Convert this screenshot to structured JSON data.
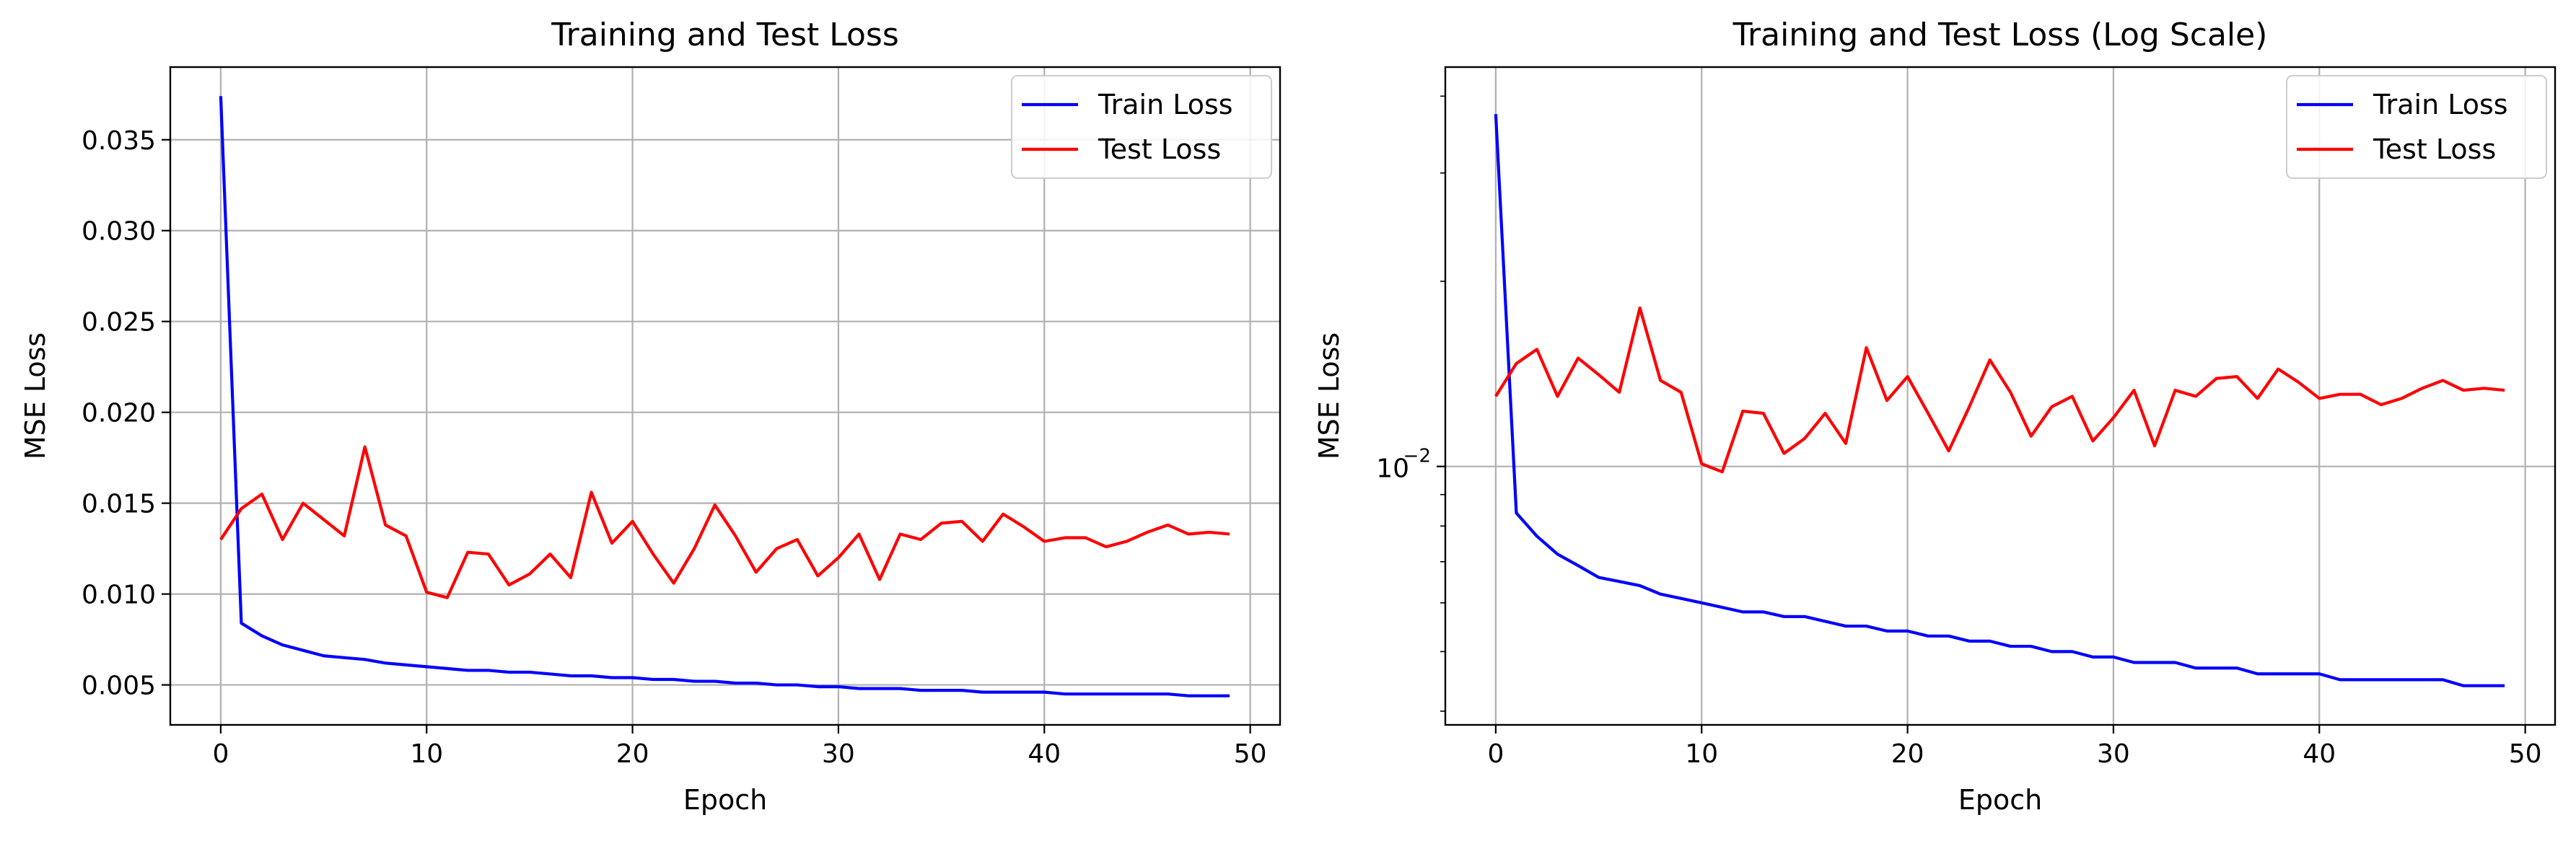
{
  "chart_data": [
    {
      "type": "line",
      "title": "Training and Test Loss",
      "xlabel": "Epoch",
      "ylabel": "MSE Loss",
      "yscale": "linear",
      "xlim": [
        -2.45,
        51.45
      ],
      "ylim": [
        0.0028,
        0.039
      ],
      "xticks": [
        0,
        10,
        20,
        30,
        40,
        50
      ],
      "xtick_labels": [
        "0",
        "10",
        "20",
        "30",
        "40",
        "50"
      ],
      "yticks": [
        0.005,
        0.01,
        0.015,
        0.02,
        0.025,
        0.03,
        0.035
      ],
      "ytick_labels": [
        "0.005",
        "0.010",
        "0.015",
        "0.020",
        "0.025",
        "0.030",
        "0.035"
      ],
      "grid": true,
      "legend": "upper right",
      "x": [
        0,
        1,
        2,
        3,
        4,
        5,
        6,
        7,
        8,
        9,
        10,
        11,
        12,
        13,
        14,
        15,
        16,
        17,
        18,
        19,
        20,
        21,
        22,
        23,
        24,
        25,
        26,
        27,
        28,
        29,
        30,
        31,
        32,
        33,
        34,
        35,
        36,
        37,
        38,
        39,
        40,
        41,
        42,
        43,
        44,
        45,
        46,
        47,
        48,
        49
      ],
      "series": [
        {
          "name": "Train Loss",
          "color": "#0000ff",
          "values": [
            0.0374,
            0.0084,
            0.0077,
            0.0072,
            0.0069,
            0.0066,
            0.0065,
            0.0064,
            0.0062,
            0.0061,
            0.006,
            0.0059,
            0.0058,
            0.0058,
            0.0057,
            0.0057,
            0.0056,
            0.0055,
            0.0055,
            0.0054,
            0.0054,
            0.0053,
            0.0053,
            0.0052,
            0.0052,
            0.0051,
            0.0051,
            0.005,
            0.005,
            0.0049,
            0.0049,
            0.0048,
            0.0048,
            0.0048,
            0.0047,
            0.0047,
            0.0047,
            0.0046,
            0.0046,
            0.0046,
            0.0046,
            0.0045,
            0.0045,
            0.0045,
            0.0045,
            0.0045,
            0.0045,
            0.0044,
            0.0044,
            0.0044
          ]
        },
        {
          "name": "Test Loss",
          "color": "#ff0000",
          "values": [
            0.013,
            0.0147,
            0.0155,
            0.013,
            0.015,
            0.0141,
            0.0132,
            0.0181,
            0.0138,
            0.0132,
            0.0101,
            0.0098,
            0.0123,
            0.0122,
            0.0105,
            0.0111,
            0.0122,
            0.0109,
            0.0156,
            0.0128,
            0.014,
            0.0122,
            0.0106,
            0.0125,
            0.0149,
            0.0132,
            0.0112,
            0.0125,
            0.013,
            0.011,
            0.012,
            0.0133,
            0.0108,
            0.0133,
            0.013,
            0.0139,
            0.014,
            0.0129,
            0.0144,
            0.0137,
            0.0129,
            0.0131,
            0.0131,
            0.0126,
            0.0129,
            0.0134,
            0.0138,
            0.0133,
            0.0134,
            0.0133
          ]
        }
      ]
    },
    {
      "type": "line",
      "title": "Training and Test Loss (Log Scale)",
      "xlabel": "Epoch",
      "ylabel": "MSE Loss",
      "yscale": "log",
      "xlim": [
        -2.45,
        51.45
      ],
      "ylim": [
        0.0038,
        0.0446
      ],
      "xticks": [
        0,
        10,
        20,
        30,
        40,
        50
      ],
      "xtick_labels": [
        "0",
        "10",
        "20",
        "30",
        "40",
        "50"
      ],
      "yticks": [
        0.01
      ],
      "ytick_base": "10",
      "ytick_exponent": "−2",
      "minor_yticks": [
        0.004,
        0.005,
        0.006,
        0.007,
        0.008,
        0.009,
        0.02,
        0.03,
        0.04
      ],
      "grid": true,
      "legend": "upper right",
      "x": [
        0,
        1,
        2,
        3,
        4,
        5,
        6,
        7,
        8,
        9,
        10,
        11,
        12,
        13,
        14,
        15,
        16,
        17,
        18,
        19,
        20,
        21,
        22,
        23,
        24,
        25,
        26,
        27,
        28,
        29,
        30,
        31,
        32,
        33,
        34,
        35,
        36,
        37,
        38,
        39,
        40,
        41,
        42,
        43,
        44,
        45,
        46,
        47,
        48,
        49
      ],
      "series": [
        {
          "name": "Train Loss",
          "color": "#0000ff",
          "values": [
            0.0374,
            0.0084,
            0.0077,
            0.0072,
            0.0069,
            0.0066,
            0.0065,
            0.0064,
            0.0062,
            0.0061,
            0.006,
            0.0059,
            0.0058,
            0.0058,
            0.0057,
            0.0057,
            0.0056,
            0.0055,
            0.0055,
            0.0054,
            0.0054,
            0.0053,
            0.0053,
            0.0052,
            0.0052,
            0.0051,
            0.0051,
            0.005,
            0.005,
            0.0049,
            0.0049,
            0.0048,
            0.0048,
            0.0048,
            0.0047,
            0.0047,
            0.0047,
            0.0046,
            0.0046,
            0.0046,
            0.0046,
            0.0045,
            0.0045,
            0.0045,
            0.0045,
            0.0045,
            0.0045,
            0.0044,
            0.0044,
            0.0044
          ]
        },
        {
          "name": "Test Loss",
          "color": "#ff0000",
          "values": [
            0.013,
            0.0147,
            0.0155,
            0.013,
            0.015,
            0.0141,
            0.0132,
            0.0181,
            0.0138,
            0.0132,
            0.0101,
            0.0098,
            0.0123,
            0.0122,
            0.0105,
            0.0111,
            0.0122,
            0.0109,
            0.0156,
            0.0128,
            0.014,
            0.0122,
            0.0106,
            0.0125,
            0.0149,
            0.0132,
            0.0112,
            0.0125,
            0.013,
            0.011,
            0.012,
            0.0133,
            0.0108,
            0.0133,
            0.013,
            0.0139,
            0.014,
            0.0129,
            0.0144,
            0.0137,
            0.0129,
            0.0131,
            0.0131,
            0.0126,
            0.0129,
            0.0134,
            0.0138,
            0.0133,
            0.0134,
            0.0133
          ]
        }
      ]
    }
  ]
}
